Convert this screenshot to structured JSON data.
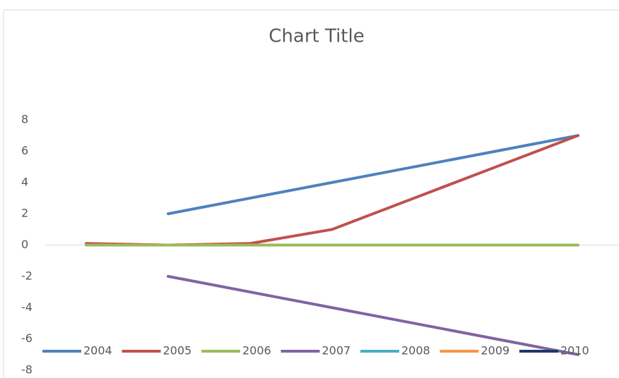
{
  "chart_data": {
    "type": "line",
    "title": "Chart Title",
    "categories": [
      null,
      null,
      null,
      null,
      null,
      null,
      null
    ],
    "series": [
      {
        "name": "2004",
        "color": "#4f81bd",
        "values": [
          null,
          2,
          3,
          4,
          5,
          6,
          7
        ]
      },
      {
        "name": "2005",
        "color": "#c0504d",
        "values": [
          0.1,
          0,
          0.1,
          1,
          3,
          5,
          7
        ]
      },
      {
        "name": "2006",
        "color": "#9bbb59",
        "values": [
          0,
          0,
          0,
          0,
          0,
          0,
          0
        ]
      },
      {
        "name": "2007",
        "color": "#8064a2",
        "values": [
          null,
          -2,
          -3,
          -4,
          -5,
          -6,
          -7
        ]
      },
      {
        "name": "2008",
        "color": "#4bacc6",
        "values": [
          null,
          null,
          null,
          null,
          null,
          null,
          null
        ]
      },
      {
        "name": "2009",
        "color": "#f79646",
        "values": [
          null,
          null,
          null,
          null,
          null,
          null,
          null
        ]
      },
      {
        "name": "2010",
        "color": "#1f3864",
        "values": [
          null,
          null,
          null,
          null,
          null,
          null,
          null
        ]
      }
    ],
    "ylim": [
      -8,
      8
    ],
    "yticks": [
      -8,
      -6,
      -4,
      -2,
      0,
      2,
      4,
      6,
      8
    ],
    "grid": false,
    "legend": "bottom"
  }
}
